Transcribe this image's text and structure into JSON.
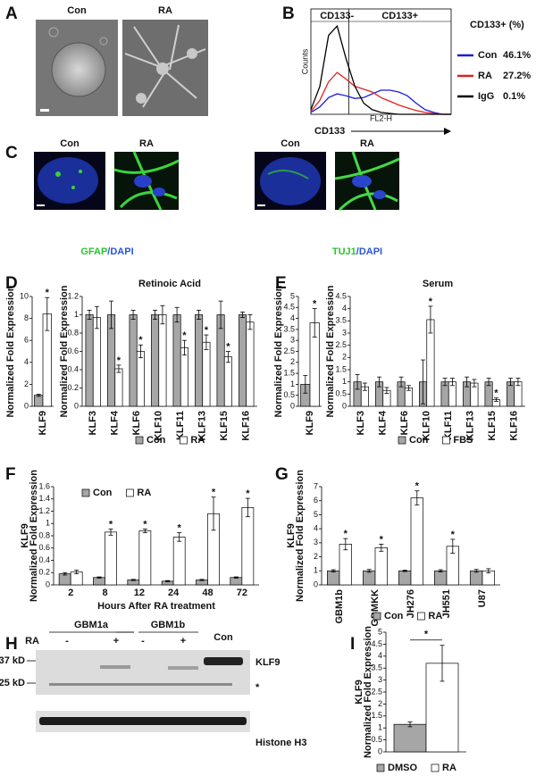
{
  "panels": [
    "A",
    "B",
    "C",
    "D",
    "E",
    "F",
    "G",
    "H",
    "I"
  ],
  "images": {
    "A": {
      "labels": [
        "Con",
        "RA"
      ]
    },
    "C": {
      "labels": [
        "Con",
        "RA",
        "Con",
        "RA"
      ],
      "captions": [
        [
          "GFAP",
          "/DAPI"
        ],
        [
          "TUJ1",
          "/DAPI"
        ]
      ]
    }
  },
  "blot": {
    "groups": [
      "GBM1a",
      "GBM1b"
    ],
    "treatment_label": "RA",
    "lanes": [
      "-",
      "+",
      "-",
      "+"
    ],
    "control_lane": "Con",
    "markers": [
      "37 kD",
      "25 kD"
    ],
    "bands": [
      "KLF9",
      "*"
    ],
    "loading": "Histone H3"
  },
  "chart_data": [
    {
      "type": "line",
      "x_scale": "log",
      "y_label": "Counts",
      "x_label": "FL2-H",
      "marker_label": "CD133",
      "gate_x": 12,
      "gate_labels": [
        "CD133-",
        "CD133+"
      ],
      "legend_title": "CD133+ (%)",
      "xlim": [
        1,
        10000
      ],
      "ylim": [
        0,
        100
      ],
      "x": [
        1,
        1.8,
        3.2,
        5.6,
        10,
        18,
        32,
        56,
        100,
        180,
        320,
        560,
        1000,
        1800,
        3200,
        5600,
        10000
      ],
      "series": [
        {
          "name": "Con",
          "percent_label": "46.1%",
          "color": "#1c1cd8",
          "values": [
            2,
            8,
            18,
            22,
            20,
            17,
            18,
            22,
            26,
            26,
            24,
            20,
            12,
            5,
            2,
            0,
            0
          ]
        },
        {
          "name": "RA",
          "percent_label": "27.2%",
          "color": "#e02020",
          "values": [
            3,
            15,
            35,
            45,
            38,
            30,
            27,
            24,
            18,
            14,
            10,
            7,
            4,
            2,
            1,
            0,
            0
          ]
        },
        {
          "name": "IgG",
          "percent_label": "0.1%",
          "color": "#000000",
          "values": [
            5,
            30,
            85,
            95,
            60,
            30,
            12,
            5,
            2,
            1,
            0,
            0,
            0,
            0,
            0,
            0,
            0
          ]
        }
      ]
    },
    {
      "type": "bar",
      "y_label": [
        "Normalized Fold Expression"
      ],
      "categories": [
        "KLF9"
      ],
      "ylim": [
        0,
        10
      ],
      "yticks": [
        0,
        2,
        4,
        6,
        8,
        10
      ],
      "series": [
        {
          "color": "#a6a6a6",
          "values": [
            1.0
          ],
          "errors": [
            0.1
          ],
          "annotations": [
            null
          ]
        },
        {
          "color": "#ffffff",
          "values": [
            8.4
          ],
          "errors": [
            1.5
          ],
          "annotations": [
            "*"
          ]
        }
      ]
    },
    {
      "type": "bar",
      "title": "Retinoic Acid",
      "y_label": [
        "Normalized Fold Expression"
      ],
      "categories": [
        "KLF3",
        "KLF4",
        "KLF6",
        "KLF10",
        "KLF11",
        "KLF13",
        "KLF15",
        "KLF16"
      ],
      "ylim": [
        0,
        1.2
      ],
      "yticks": [
        0,
        0.2,
        0.4,
        0.6,
        0.8,
        1,
        1.2
      ],
      "series": [
        {
          "name": "Con",
          "color": "#a6a6a6",
          "values": [
            1,
            1,
            1,
            1,
            1,
            1,
            1,
            1
          ],
          "errors": [
            0.05,
            0.15,
            0.05,
            0.05,
            0.08,
            0.05,
            0.15,
            0.03
          ]
        },
        {
          "name": "RA",
          "color": "#ffffff",
          "values": [
            0.97,
            0.41,
            0.6,
            1.0,
            0.64,
            0.7,
            0.54,
            0.92
          ],
          "errors": [
            0.12,
            0.04,
            0.07,
            0.1,
            0.08,
            0.08,
            0.06,
            0.08
          ],
          "annotations": [
            null,
            "*",
            "*",
            null,
            "*",
            "*",
            "*",
            null
          ]
        }
      ]
    },
    {
      "type": "bar",
      "y_label": [
        "Normalized Fold Expression"
      ],
      "categories": [
        "KLF9"
      ],
      "ylim": [
        0,
        5
      ],
      "yticks": [
        0,
        0.5,
        1,
        1.5,
        2,
        2.5,
        3,
        3.5,
        4,
        4.5,
        5
      ],
      "series": [
        {
          "color": "#a6a6a6",
          "values": [
            1.0
          ],
          "errors": [
            0.4
          ],
          "annotations": [
            null
          ]
        },
        {
          "color": "#ffffff",
          "values": [
            3.8
          ],
          "errors": [
            0.65
          ],
          "annotations": [
            "*"
          ]
        }
      ]
    },
    {
      "type": "bar",
      "title": "Serum",
      "y_label": [
        "Normalized Fold Expression"
      ],
      "categories": [
        "KLF3",
        "KLF4",
        "KLF6",
        "KLF10",
        "KLF11",
        "KLF13",
        "KLF15",
        "KLF16"
      ],
      "ylim": [
        0,
        4.5
      ],
      "yticks": [
        0,
        0.5,
        1,
        1.5,
        2,
        2.5,
        3,
        3.5,
        4,
        4.5
      ],
      "series": [
        {
          "name": "Con",
          "color": "#a6a6a6",
          "values": [
            1,
            1,
            1,
            1,
            1,
            1,
            1,
            1
          ],
          "errors": [
            0.3,
            0.2,
            0.2,
            0.9,
            0.15,
            0.2,
            0.15,
            0.15
          ]
        },
        {
          "name": "FBS",
          "color": "#ffffff",
          "values": [
            0.8,
            0.65,
            0.75,
            3.55,
            1.0,
            0.95,
            0.27,
            1.0
          ],
          "errors": [
            0.15,
            0.12,
            0.1,
            0.55,
            0.15,
            0.15,
            0.07,
            0.15
          ],
          "annotations": [
            null,
            null,
            null,
            "*",
            null,
            null,
            "*",
            null
          ]
        }
      ]
    },
    {
      "type": "bar",
      "y_label": [
        "KLF9",
        "Normalized Fold Expression"
      ],
      "x_label": "Hours After RA treatment",
      "categories": [
        "2",
        "8",
        "12",
        "24",
        "48",
        "72"
      ],
      "ylim": [
        0,
        1.6
      ],
      "yticks": [
        0,
        0.2,
        0.4,
        0.6,
        0.8,
        1,
        1.2,
        1.4,
        1.6
      ],
      "series": [
        {
          "name": "Con",
          "color": "#a6a6a6",
          "values": [
            0.18,
            0.12,
            0.08,
            0.06,
            0.08,
            0.12
          ],
          "errors": [
            0.02,
            0.01,
            0.01,
            0.01,
            0.01,
            0.01
          ]
        },
        {
          "name": "RA",
          "color": "#ffffff",
          "values": [
            0.21,
            0.86,
            0.88,
            0.78,
            1.16,
            1.26
          ],
          "errors": [
            0.03,
            0.05,
            0.03,
            0.07,
            0.27,
            0.15
          ],
          "annotations": [
            null,
            "*",
            "*",
            "*",
            "*",
            "*"
          ]
        }
      ]
    },
    {
      "type": "bar",
      "y_label": [
        "KLF9",
        "Normalized Fold Expression"
      ],
      "categories": [
        "GBM1b",
        "GBMKK",
        "JH276",
        "JH551",
        "U87"
      ],
      "ylim": [
        0,
        7
      ],
      "yticks": [
        0,
        1,
        2,
        3,
        4,
        5,
        6,
        7
      ],
      "series": [
        {
          "name": "Con",
          "color": "#a6a6a6",
          "values": [
            1,
            1,
            1,
            1,
            1
          ],
          "errors": [
            0.08,
            0.1,
            0.05,
            0.08,
            0.1
          ]
        },
        {
          "name": "RA",
          "color": "#ffffff",
          "values": [
            2.9,
            2.65,
            6.2,
            2.75,
            1.0
          ],
          "errors": [
            0.4,
            0.25,
            0.5,
            0.5,
            0.15
          ],
          "annotations": [
            "*",
            "*",
            "*",
            "*",
            null
          ]
        }
      ]
    },
    {
      "type": "bar",
      "y_label": [
        "KLF9",
        "Normalized Fold Expression"
      ],
      "categories": [
        null
      ],
      "ylim": [
        0,
        5
      ],
      "yticks": [
        0,
        0.5,
        1,
        1.5,
        2,
        2.5,
        3,
        3.5,
        4,
        4.5,
        5
      ],
      "comparison": "*",
      "series": [
        {
          "name": "DMSO",
          "color": "#a6a6a6",
          "values": [
            1.15
          ],
          "errors": [
            0.1
          ]
        },
        {
          "name": "RA",
          "color": "#ffffff",
          "values": [
            3.7
          ],
          "errors": [
            0.75
          ]
        }
      ]
    }
  ]
}
